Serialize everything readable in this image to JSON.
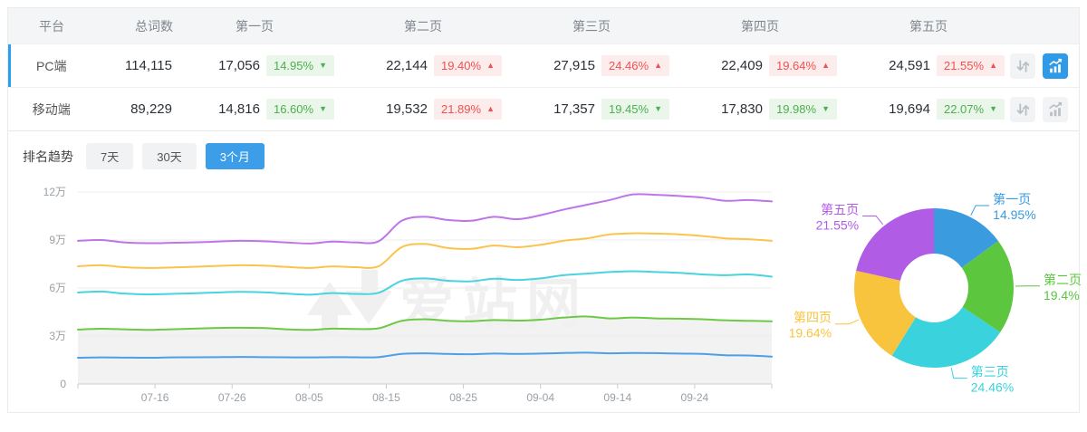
{
  "table": {
    "headers": {
      "platform": "平台",
      "total": "总词数",
      "pages": [
        "第一页",
        "第二页",
        "第三页",
        "第四页",
        "第五页"
      ]
    },
    "rows": [
      {
        "platform": "PC端",
        "total": "114,115",
        "selected": true,
        "chart_active": true,
        "pages": [
          {
            "count": "17,056",
            "pct": "14.95%",
            "trend": "down"
          },
          {
            "count": "22,144",
            "pct": "19.40%",
            "trend": "up"
          },
          {
            "count": "27,915",
            "pct": "24.46%",
            "trend": "up"
          },
          {
            "count": "22,409",
            "pct": "19.64%",
            "trend": "up"
          },
          {
            "count": "24,591",
            "pct": "21.55%",
            "trend": "up"
          }
        ]
      },
      {
        "platform": "移动端",
        "total": "89,229",
        "selected": false,
        "chart_active": false,
        "pages": [
          {
            "count": "14,816",
            "pct": "16.60%",
            "trend": "down"
          },
          {
            "count": "19,532",
            "pct": "21.89%",
            "trend": "up"
          },
          {
            "count": "17,357",
            "pct": "19.45%",
            "trend": "down"
          },
          {
            "count": "17,830",
            "pct": "19.98%",
            "trend": "down"
          },
          {
            "count": "19,694",
            "pct": "22.07%",
            "trend": "down"
          }
        ]
      }
    ]
  },
  "trend": {
    "title": "排名趋势",
    "tabs": [
      {
        "label": "7天",
        "active": false
      },
      {
        "label": "30天",
        "active": false
      },
      {
        "label": "3个月",
        "active": true
      }
    ]
  },
  "watermark": "爱站网",
  "chart_data": [
    {
      "type": "line",
      "note": "stacked cumulative keyword counts, unit 万 (10k)",
      "unit": "万",
      "ylim": [
        0,
        12
      ],
      "y_ticks": [
        "0",
        "3万",
        "6万",
        "9万",
        "12万"
      ],
      "y_tick_values": [
        0,
        3,
        6,
        9,
        12
      ],
      "x_ticks": [
        "07-16",
        "07-26",
        "08-05",
        "08-15",
        "08-25",
        "09-04",
        "09-14",
        "09-24"
      ],
      "x": [
        "07-06",
        "07-09",
        "07-12",
        "07-15",
        "07-18",
        "07-21",
        "07-24",
        "07-27",
        "07-30",
        "08-02",
        "08-05",
        "08-08",
        "08-11",
        "08-14",
        "08-17",
        "08-20",
        "08-23",
        "08-26",
        "08-29",
        "09-01",
        "09-04",
        "09-07",
        "09-10",
        "09-13",
        "09-16",
        "09-19",
        "09-22",
        "09-25",
        "09-28",
        "10-01",
        "10-04"
      ],
      "area_color": "#f2f2f2",
      "grid_color": "#ececec",
      "axis_color": "#cccccc",
      "label_color": "#9aa0a6",
      "series": [
        {
          "name": "第一页",
          "color": "#4f9ee8",
          "area": false,
          "values": [
            1.64,
            1.66,
            1.65,
            1.64,
            1.66,
            1.67,
            1.68,
            1.69,
            1.68,
            1.67,
            1.66,
            1.68,
            1.67,
            1.68,
            1.88,
            1.92,
            1.88,
            1.86,
            1.9,
            1.88,
            1.9,
            1.94,
            1.96,
            1.92,
            1.94,
            1.93,
            1.9,
            1.88,
            1.8,
            1.78,
            1.71
          ]
        },
        {
          "name": "第二页",
          "color": "#6dc944",
          "area": true,
          "values": [
            3.4,
            3.45,
            3.42,
            3.38,
            3.42,
            3.46,
            3.5,
            3.52,
            3.5,
            3.42,
            3.38,
            3.46,
            3.44,
            3.48,
            3.95,
            4.05,
            3.95,
            3.92,
            4.0,
            3.96,
            4.02,
            4.15,
            4.22,
            4.1,
            4.15,
            4.1,
            4.08,
            4.05,
            3.98,
            3.95,
            3.92
          ]
        },
        {
          "name": "第三页",
          "color": "#49d3de",
          "area": false,
          "values": [
            5.72,
            5.78,
            5.65,
            5.6,
            5.63,
            5.67,
            5.72,
            5.76,
            5.73,
            5.65,
            5.58,
            5.68,
            5.63,
            5.7,
            6.45,
            6.6,
            6.45,
            6.42,
            6.58,
            6.5,
            6.6,
            6.8,
            6.9,
            7.0,
            7.05,
            7.0,
            6.95,
            6.85,
            6.8,
            6.85,
            6.71
          ]
        },
        {
          "name": "第四页",
          "color": "#fbc34b",
          "area": false,
          "values": [
            7.36,
            7.42,
            7.3,
            7.25,
            7.28,
            7.32,
            7.38,
            7.42,
            7.4,
            7.32,
            7.25,
            7.35,
            7.3,
            7.36,
            8.55,
            8.75,
            8.5,
            8.45,
            8.65,
            8.55,
            8.7,
            8.95,
            9.1,
            9.35,
            9.42,
            9.4,
            9.35,
            9.25,
            9.1,
            9.05,
            8.95
          ]
        },
        {
          "name": "第五页",
          "color": "#bd75ea",
          "area": false,
          "values": [
            8.95,
            9.0,
            8.85,
            8.8,
            8.82,
            8.85,
            8.9,
            8.95,
            8.92,
            8.85,
            8.78,
            8.9,
            8.85,
            8.92,
            10.2,
            10.45,
            10.25,
            10.2,
            10.45,
            10.3,
            10.55,
            10.9,
            11.2,
            11.5,
            11.85,
            11.82,
            11.75,
            11.65,
            11.45,
            11.5,
            11.41
          ]
        }
      ]
    },
    {
      "type": "pie",
      "donut": true,
      "start": "top",
      "direction": "clockwise",
      "labels": [
        "第一页",
        "第二页",
        "第三页",
        "第四页",
        "第五页"
      ],
      "values": [
        14.95,
        19.4,
        24.46,
        19.64,
        21.55
      ],
      "value_labels": [
        "14.95%",
        "19.4%",
        "24.46%",
        "19.64%",
        "21.55%"
      ],
      "colors": [
        "#3a9bdf",
        "#5cc63f",
        "#3ad2dd",
        "#f9c43d",
        "#b05ce4"
      ]
    }
  ]
}
